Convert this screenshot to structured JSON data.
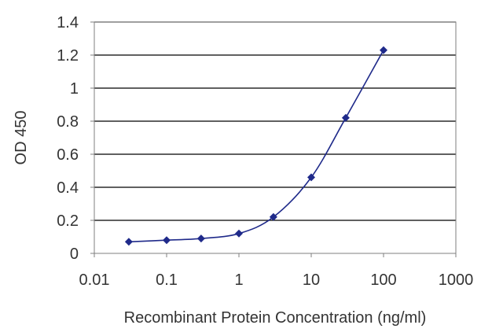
{
  "chart_data": {
    "type": "line",
    "title": "",
    "xlabel": "Recombinant Protein Concentration (ng/ml)",
    "ylabel": "OD 450",
    "x_scale": "log",
    "xlim": [
      0.01,
      1000
    ],
    "ylim": [
      0,
      1.4
    ],
    "x_ticks": [
      "0.01",
      "0.1",
      "1",
      "10",
      "100",
      "1000"
    ],
    "y_ticks": [
      "0",
      "0.2",
      "0.4",
      "0.6",
      "0.8",
      "1",
      "1.2",
      "1.4"
    ],
    "grid": "horizontal",
    "legend": "none",
    "series": [
      {
        "color": "#1f2a8a",
        "x": [
          0.03,
          0.1,
          0.3,
          1,
          3,
          10,
          30,
          100
        ],
        "y": [
          0.07,
          0.08,
          0.09,
          0.12,
          0.22,
          0.46,
          0.82,
          1.23
        ]
      }
    ],
    "colors": {
      "line": "#1f2a8a",
      "grid": "#000000",
      "axis": "#7f7f7f"
    }
  }
}
